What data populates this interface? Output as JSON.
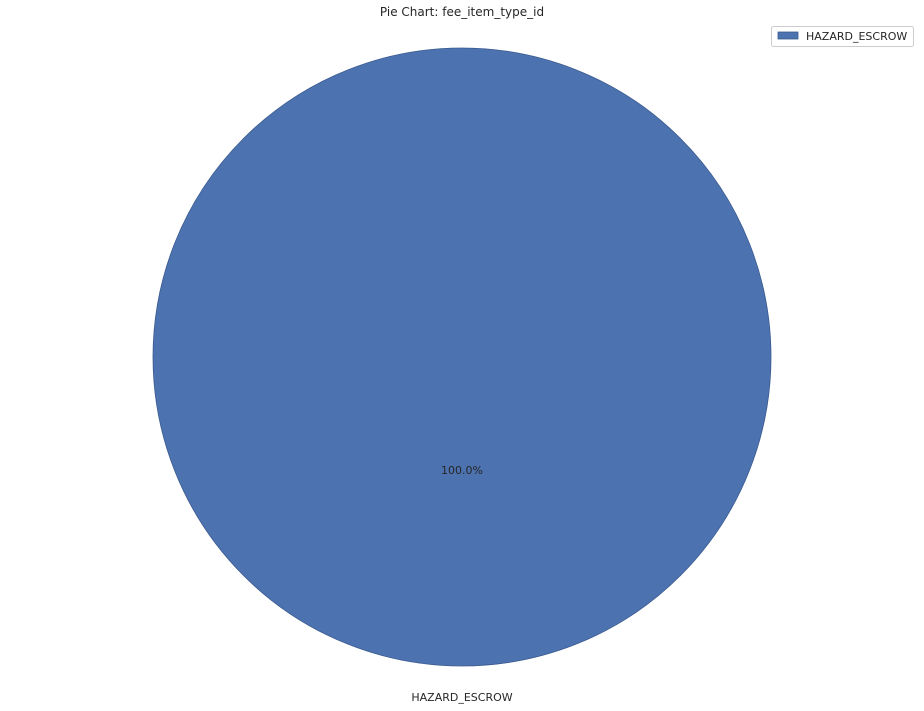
{
  "chart_data": {
    "type": "pie",
    "title": "Pie Chart: fee_item_type_id",
    "slices": [
      {
        "label": "HAZARD_ESCROW",
        "value": 100.0,
        "percent_label": "100.0%",
        "color": "#4c72b0"
      }
    ],
    "legend": {
      "placement": "top-right",
      "entries": [
        "HAZARD_ESCROW"
      ]
    },
    "edge_color": "#3a5a8f"
  }
}
